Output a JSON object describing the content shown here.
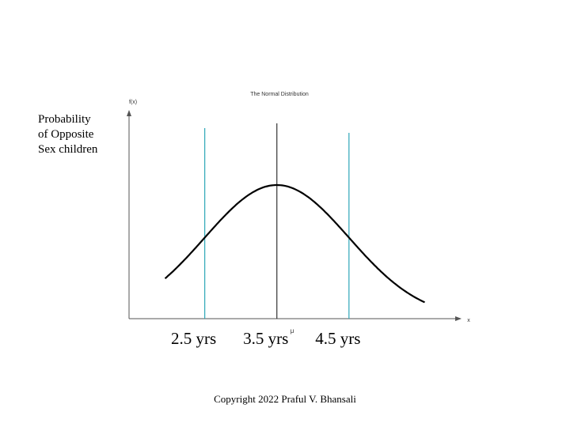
{
  "slide": {
    "ylabel_lines": [
      "Probability",
      "of Opposite",
      "Sex children"
    ],
    "copyright": "Copyright 2022 Praful V. Bhansali"
  },
  "chart_data": {
    "type": "line",
    "title": "The Normal Distribution",
    "y_axis_label": "f(x)",
    "x_axis_label": "x",
    "mean_label": "μ",
    "mean": 3.5,
    "sd": 1,
    "xlim": [
      1.45,
      6.05
    ],
    "curve_range": [
      1.95,
      5.55
    ],
    "grid": false,
    "series": [
      {
        "x": [
          1.95,
          2.15,
          2.35,
          2.55,
          2.75,
          2.95,
          3.15,
          3.35,
          3.5,
          3.65,
          3.85,
          4.05,
          4.25,
          4.45,
          4.65,
          4.85,
          5.05,
          5.25,
          5.55
        ],
        "y": [
          0.12,
          0.179,
          0.256,
          0.351,
          0.458,
          0.574,
          0.69,
          0.794,
          0.88,
          0.794,
          0.69,
          0.574,
          0.458,
          0.351,
          0.256,
          0.179,
          0.12,
          0.077,
          0.04
        ]
      }
    ],
    "markers": [
      {
        "value": 2.5,
        "label": "2.5 yrs",
        "color": "#2ca6b8"
      },
      {
        "value": 3.5,
        "label": "3.5 yrs",
        "color": "#333333"
      },
      {
        "value": 4.5,
        "label": "4.5 yrs",
        "color": "#2ca6b8"
      }
    ],
    "colors": {
      "curve": "#000000",
      "axis": "#555555",
      "marker": "#2ca6b8",
      "mean_line": "#333333"
    }
  }
}
